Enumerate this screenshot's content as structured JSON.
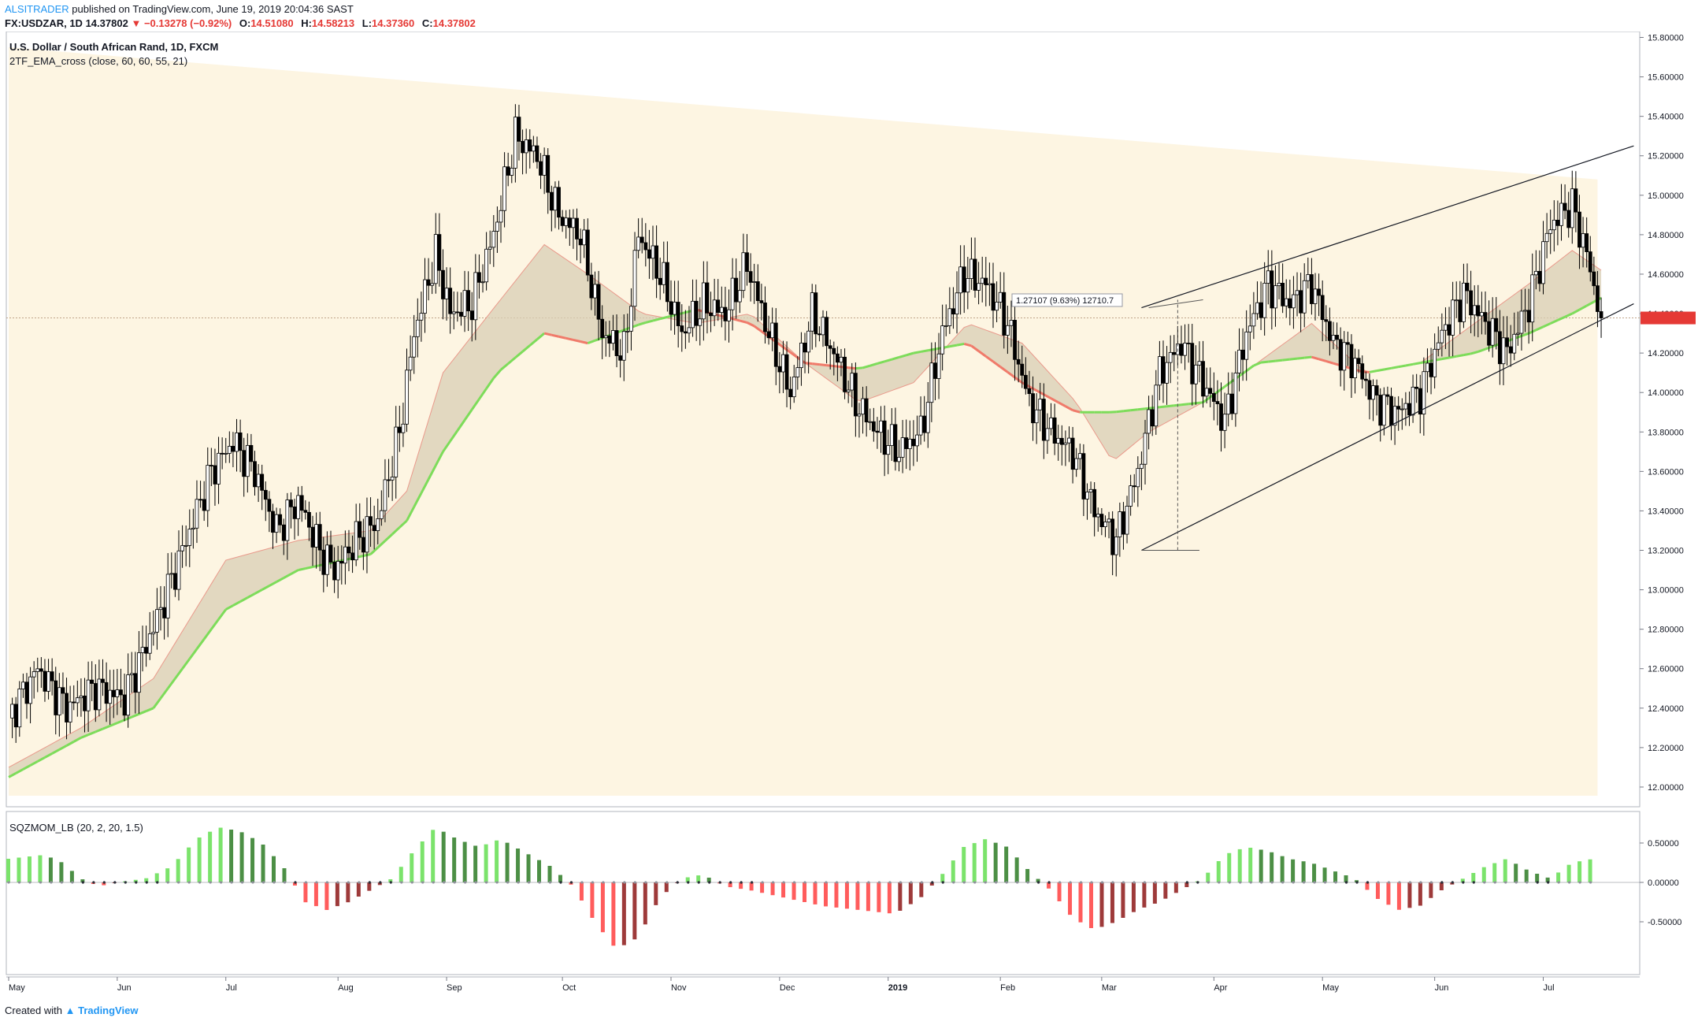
{
  "header": {
    "author": "ALSITRADER",
    "published": "published on TradingView.com, June 19, 2019 20:04:36 SAST",
    "symbol": "FX:USDZAR, 1D",
    "last": "14.37802",
    "change_arrow": "▼",
    "change": "−0.13278 (−0.92%)",
    "o_label": "O:",
    "o": "14.51080",
    "h_label": "H:",
    "h": "14.58213",
    "l_label": "L:",
    "l": "14.37360",
    "c_label": "C:",
    "c": "14.37802"
  },
  "legend": {
    "title": "U.S. Dollar / South African Rand, 1D, FXCM",
    "indicator": "2TF_EMA_cross (close, 60, 60, 55, 21)",
    "oscillator": "SQZMOM_LB (20, 2, 20, 1.5)"
  },
  "annotation": {
    "fib_label": "1.27107 (9.63%) 12710.7"
  },
  "footer": {
    "created_with": "Created with",
    "brand": "TradingView"
  },
  "colors": {
    "background_zone": "#fdf5e2",
    "bull_body": "#ffffff",
    "bear_body": "#000000",
    "ema_fast": "#e8877a",
    "ema_slow_up": "#7ddc5a",
    "ema_slow_down": "#f07a6a",
    "ribbon_fill": "#d8cdb4",
    "mom_bright_green": "#7be36b",
    "mom_dark_green": "#4c8f45",
    "mom_bright_red": "#ff5c5c",
    "mom_dark_red": "#9e3a3a"
  },
  "chart_data": [
    {
      "type": "candlestick",
      "title": "U.S. Dollar / South African Rand, 1D, FXCM",
      "x_labels": [
        "May",
        "Jun",
        "Jul",
        "Aug",
        "Sep",
        "Oct",
        "Nov",
        "Dec",
        "2019",
        "Feb",
        "Mar",
        "Apr",
        "May",
        "Jun",
        "Jul"
      ],
      "y_ticks": [
        "15.80000",
        "15.60000",
        "15.40000",
        "15.20000",
        "15.00000",
        "14.80000",
        "14.60000",
        "14.40000",
        "14.20000",
        "14.00000",
        "13.80000",
        "13.60000",
        "13.40000",
        "13.20000",
        "13.00000",
        "12.80000",
        "12.60000",
        "12.40000",
        "12.20000",
        "12.00000"
      ],
      "ylim": [
        11.9,
        15.83
      ],
      "last_price": 14.378,
      "close_path": [
        [
          0,
          12.35
        ],
        [
          8,
          12.6
        ],
        [
          16,
          12.4
        ],
        [
          24,
          12.5
        ],
        [
          32,
          12.45
        ],
        [
          42,
          12.9
        ],
        [
          50,
          13.3
        ],
        [
          56,
          13.6
        ],
        [
          62,
          13.75
        ],
        [
          68,
          13.6
        ],
        [
          74,
          13.3
        ],
        [
          80,
          13.45
        ],
        [
          86,
          13.2
        ],
        [
          90,
          13.1
        ],
        [
          96,
          13.25
        ],
        [
          102,
          13.35
        ],
        [
          108,
          13.8
        ],
        [
          112,
          14.3
        ],
        [
          118,
          14.7
        ],
        [
          122,
          14.4
        ],
        [
          128,
          14.45
        ],
        [
          134,
          14.8
        ],
        [
          140,
          15.3
        ],
        [
          146,
          15.2
        ],
        [
          152,
          14.9
        ],
        [
          158,
          14.8
        ],
        [
          164,
          14.3
        ],
        [
          170,
          14.2
        ],
        [
          174,
          14.8
        ],
        [
          180,
          14.6
        ],
        [
          186,
          14.3
        ],
        [
          192,
          14.45
        ],
        [
          198,
          14.4
        ],
        [
          204,
          14.65
        ],
        [
          210,
          14.3
        ],
        [
          216,
          14.0
        ],
        [
          222,
          14.4
        ],
        [
          228,
          14.2
        ],
        [
          234,
          13.95
        ],
        [
          240,
          13.8
        ],
        [
          246,
          13.7
        ],
        [
          252,
          13.8
        ],
        [
          258,
          14.3
        ],
        [
          264,
          14.6
        ],
        [
          270,
          14.55
        ],
        [
          276,
          14.35
        ],
        [
          282,
          13.95
        ],
        [
          288,
          13.8
        ],
        [
          294,
          13.7
        ],
        [
          300,
          13.4
        ],
        [
          306,
          13.25
        ],
        [
          312,
          13.6
        ],
        [
          318,
          14.1
        ],
        [
          324,
          14.25
        ],
        [
          330,
          14.05
        ],
        [
          336,
          13.85
        ],
        [
          342,
          14.3
        ],
        [
          348,
          14.55
        ],
        [
          354,
          14.45
        ],
        [
          360,
          14.55
        ],
        [
          366,
          14.25
        ],
        [
          372,
          14.15
        ],
        [
          378,
          13.95
        ],
        [
          384,
          13.9
        ],
        [
          390,
          14.0
        ],
        [
          396,
          14.3
        ],
        [
          402,
          14.5
        ],
        [
          408,
          14.35
        ],
        [
          414,
          14.2
        ],
        [
          420,
          14.45
        ],
        [
          426,
          14.85
        ],
        [
          432,
          14.95
        ],
        [
          436,
          14.7
        ],
        [
          440,
          14.378
        ]
      ],
      "ema_fast_path": [
        [
          0,
          12.1
        ],
        [
          20,
          12.3
        ],
        [
          40,
          12.55
        ],
        [
          60,
          13.15
        ],
        [
          80,
          13.25
        ],
        [
          100,
          13.3
        ],
        [
          110,
          13.5
        ],
        [
          120,
          14.1
        ],
        [
          135,
          14.45
        ],
        [
          148,
          14.75
        ],
        [
          160,
          14.6
        ],
        [
          175,
          14.4
        ],
        [
          190,
          14.35
        ],
        [
          205,
          14.4
        ],
        [
          220,
          14.15
        ],
        [
          235,
          13.95
        ],
        [
          250,
          14.05
        ],
        [
          265,
          14.35
        ],
        [
          280,
          14.25
        ],
        [
          295,
          13.95
        ],
        [
          305,
          13.65
        ],
        [
          315,
          13.8
        ],
        [
          330,
          13.95
        ],
        [
          345,
          14.15
        ],
        [
          360,
          14.35
        ],
        [
          375,
          14.1
        ],
        [
          390,
          14.15
        ],
        [
          405,
          14.35
        ],
        [
          420,
          14.55
        ],
        [
          432,
          14.72
        ],
        [
          440,
          14.62
        ]
      ],
      "ema_slow_path": [
        [
          0,
          12.05
        ],
        [
          20,
          12.25
        ],
        [
          40,
          12.4
        ],
        [
          60,
          12.9
        ],
        [
          80,
          13.1
        ],
        [
          100,
          13.18
        ],
        [
          110,
          13.35
        ],
        [
          120,
          13.7
        ],
        [
          135,
          14.1
        ],
        [
          148,
          14.3
        ],
        [
          160,
          14.25
        ],
        [
          175,
          14.35
        ],
        [
          190,
          14.42
        ],
        [
          205,
          14.35
        ],
        [
          220,
          14.15
        ],
        [
          235,
          14.12
        ],
        [
          250,
          14.2
        ],
        [
          265,
          14.25
        ],
        [
          280,
          14.05
        ],
        [
          295,
          13.9
        ],
        [
          305,
          13.9
        ],
        [
          315,
          13.92
        ],
        [
          330,
          13.95
        ],
        [
          345,
          14.15
        ],
        [
          360,
          14.18
        ],
        [
          375,
          14.1
        ],
        [
          390,
          14.15
        ],
        [
          405,
          14.2
        ],
        [
          420,
          14.3
        ],
        [
          432,
          14.4
        ],
        [
          440,
          14.48
        ]
      ],
      "trendlines": [
        {
          "name": "upper-channel",
          "from": [
            313,
            14.43
          ],
          "to": [
            449,
            15.25
          ]
        },
        {
          "name": "lower-channel",
          "from": [
            313,
            13.2
          ],
          "to": [
            449,
            14.45
          ]
        }
      ]
    },
    {
      "type": "bar",
      "title": "SQZMOM_LB (20, 2, 20, 1.5)",
      "y_ticks": [
        "0.50000",
        "0.00000",
        "-0.50000"
      ],
      "ylim": [
        -0.9,
        0.9
      ],
      "bar_count": 150,
      "momentum_path": [
        [
          0,
          0.3
        ],
        [
          10,
          0.35
        ],
        [
          15,
          0.25
        ],
        [
          20,
          0.05
        ],
        [
          25,
          -0.05
        ],
        [
          30,
          0.0
        ],
        [
          38,
          0.05
        ],
        [
          45,
          0.2
        ],
        [
          52,
          0.55
        ],
        [
          58,
          0.7
        ],
        [
          64,
          0.65
        ],
        [
          70,
          0.5
        ],
        [
          76,
          0.2
        ],
        [
          82,
          -0.25
        ],
        [
          88,
          -0.35
        ],
        [
          94,
          -0.25
        ],
        [
          100,
          -0.1
        ],
        [
          106,
          0.05
        ],
        [
          112,
          0.4
        ],
        [
          118,
          0.7
        ],
        [
          124,
          0.55
        ],
        [
          130,
          0.45
        ],
        [
          136,
          0.55
        ],
        [
          142,
          0.4
        ],
        [
          150,
          0.2
        ],
        [
          156,
          -0.05
        ],
        [
          162,
          -0.5
        ],
        [
          168,
          -0.85
        ],
        [
          174,
          -0.7
        ],
        [
          180,
          -0.2
        ],
        [
          186,
          0.05
        ],
        [
          192,
          0.1
        ],
        [
          198,
          -0.05
        ],
        [
          205,
          -0.1
        ],
        [
          215,
          -0.2
        ],
        [
          225,
          -0.3
        ],
        [
          235,
          -0.35
        ],
        [
          245,
          -0.4
        ],
        [
          252,
          -0.2
        ],
        [
          258,
          0.1
        ],
        [
          264,
          0.45
        ],
        [
          270,
          0.55
        ],
        [
          276,
          0.45
        ],
        [
          282,
          0.15
        ],
        [
          288,
          -0.1
        ],
        [
          294,
          -0.45
        ],
        [
          300,
          -0.6
        ],
        [
          306,
          -0.5
        ],
        [
          312,
          -0.35
        ],
        [
          318,
          -0.25
        ],
        [
          324,
          -0.1
        ],
        [
          330,
          0.05
        ],
        [
          336,
          0.35
        ],
        [
          342,
          0.45
        ],
        [
          348,
          0.4
        ],
        [
          354,
          0.3
        ],
        [
          360,
          0.25
        ],
        [
          366,
          0.15
        ],
        [
          372,
          0.05
        ],
        [
          378,
          -0.2
        ],
        [
          384,
          -0.35
        ],
        [
          390,
          -0.3
        ],
        [
          396,
          -0.1
        ],
        [
          402,
          0.05
        ],
        [
          408,
          0.2
        ],
        [
          414,
          0.3
        ],
        [
          420,
          0.15
        ],
        [
          426,
          0.05
        ],
        [
          432,
          0.25
        ],
        [
          438,
          0.3
        ],
        [
          443,
          0.15
        ]
      ]
    }
  ]
}
